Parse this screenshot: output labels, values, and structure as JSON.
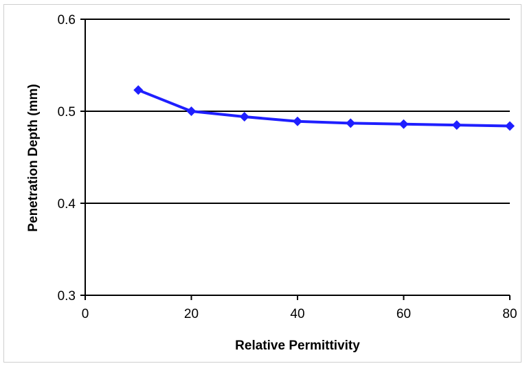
{
  "chart_data": {
    "type": "line",
    "xlabel": "Relative Permittivity",
    "ylabel": "Penetration Depth (mm)",
    "xlim": [
      0,
      80
    ],
    "ylim": [
      0.3,
      0.6
    ],
    "x_ticks": [
      "0",
      "20",
      "40",
      "60",
      "80"
    ],
    "y_ticks": [
      "0.3",
      "0.4",
      "0.5",
      "0.6"
    ],
    "grid": "horizontal",
    "series": [
      {
        "color": "#1f1fff",
        "marker": "diamond",
        "x": [
          10,
          20,
          30,
          40,
          50,
          60,
          70,
          80
        ],
        "y": [
          0.523,
          0.5,
          0.494,
          0.489,
          0.487,
          0.486,
          0.485,
          0.484
        ]
      }
    ]
  }
}
